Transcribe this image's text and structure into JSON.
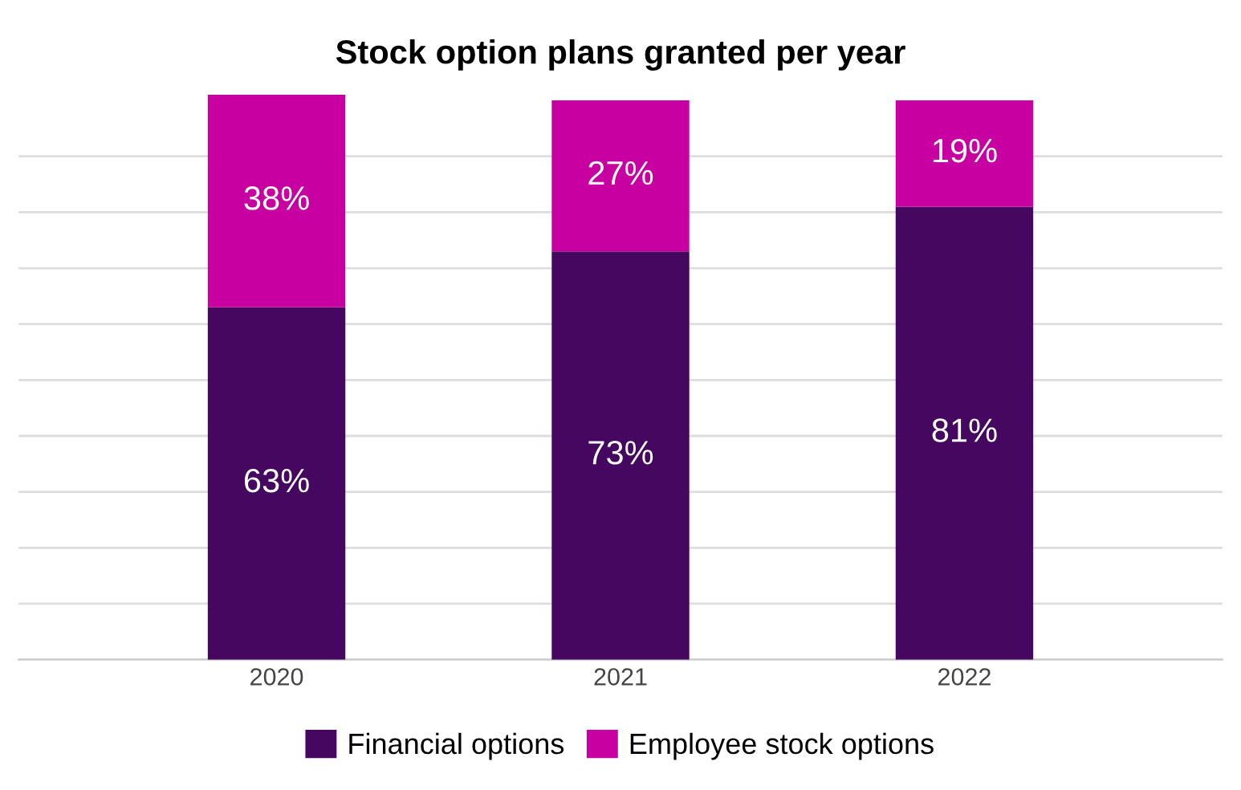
{
  "chart_data": {
    "type": "bar",
    "title": "Stock option plans granted per year",
    "categories": [
      "2020",
      "2021",
      "2022"
    ],
    "stacked": true,
    "series": [
      {
        "name": "Financial options",
        "color": "#45075f",
        "values": [
          63,
          73,
          81
        ],
        "value_labels": [
          "63%",
          "73%",
          "81%"
        ]
      },
      {
        "name": "Employee stock options",
        "color": "#c800a1",
        "values": [
          38,
          27,
          19
        ],
        "value_labels": [
          "38%",
          "27%",
          "19%"
        ]
      }
    ],
    "ylim": [
      0,
      101
    ],
    "yticks": [
      {
        "value": 0,
        "label": null
      },
      {
        "value": 10,
        "label": null
      },
      {
        "value": 20,
        "label": null
      },
      {
        "value": 30,
        "label": null
      },
      {
        "value": 40,
        "label": null
      },
      {
        "value": 50,
        "label": null
      },
      {
        "value": 60,
        "label": null
      },
      {
        "value": 70,
        "label": null
      },
      {
        "value": 80,
        "label": null
      },
      {
        "value": 90,
        "label": null
      }
    ],
    "tick_labels": "x",
    "grid": "y",
    "legend": "bottom"
  }
}
